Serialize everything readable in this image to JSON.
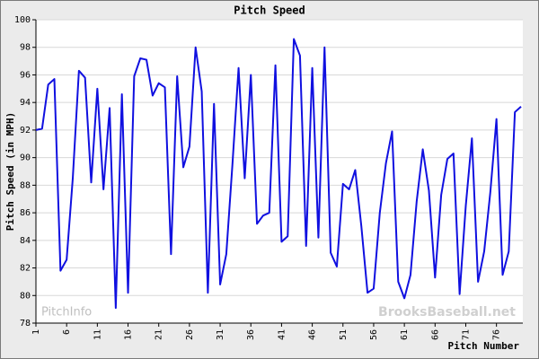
{
  "chart_data": {
    "type": "line",
    "title": "Pitch Speed",
    "y_label": "Pitch Speed (in MPH)",
    "x_label": "Pitch Number",
    "watermarks": [
      "PitchInfo",
      "BrooksBaseball.net"
    ],
    "x": [
      1,
      2,
      3,
      4,
      5,
      6,
      7,
      8,
      9,
      10,
      11,
      12,
      13,
      14,
      15,
      16,
      17,
      18,
      19,
      20,
      21,
      22,
      23,
      24,
      25,
      26,
      27,
      28,
      29,
      30,
      31,
      32,
      33,
      34,
      35,
      36,
      37,
      38,
      39,
      40,
      41,
      42,
      43,
      44,
      45,
      46,
      47,
      48,
      49,
      50,
      51,
      52,
      53,
      54,
      55,
      56,
      57,
      58,
      59,
      60,
      61,
      62,
      63,
      64,
      65,
      66,
      67,
      68,
      69,
      70,
      71,
      72,
      73,
      74,
      75,
      76,
      77,
      78,
      79,
      80
    ],
    "series": [
      {
        "name": "Pitch Speed",
        "color": "#1010e0",
        "values": [
          92.0,
          92.1,
          95.3,
          95.7,
          81.8,
          82.6,
          88.5,
          96.3,
          95.8,
          88.2,
          95.0,
          87.7,
          93.6,
          79.1,
          94.6,
          80.2,
          95.9,
          97.2,
          97.1,
          94.5,
          95.4,
          95.1,
          83.0,
          95.9,
          89.3,
          90.8,
          98.0,
          94.8,
          80.2,
          93.9,
          80.8,
          83.0,
          89.5,
          96.5,
          88.5,
          96.0,
          85.2,
          85.8,
          86.0,
          96.7,
          83.9,
          84.3,
          98.6,
          97.4,
          83.6,
          96.5,
          84.2,
          98.0,
          83.1,
          82.1,
          88.1,
          87.7,
          89.1,
          85.0,
          80.2,
          80.5,
          86.0,
          89.6,
          91.9,
          81.0,
          79.8,
          81.5,
          86.8,
          90.6,
          87.6,
          81.3,
          87.3,
          89.9,
          90.3,
          80.1,
          86.5,
          91.4,
          81.0,
          83.2,
          87.5,
          92.8,
          81.5,
          83.2,
          93.3,
          93.7
        ]
      }
    ],
    "xlim": [
      1,
      80
    ],
    "xticks": [
      1,
      6,
      11,
      16,
      21,
      26,
      31,
      36,
      41,
      46,
      51,
      56,
      61,
      66,
      71,
      76
    ],
    "ylim": [
      78,
      100
    ],
    "yticks": [
      78,
      80,
      82,
      84,
      86,
      88,
      90,
      92,
      94,
      96,
      98,
      100
    ],
    "grid": true
  }
}
